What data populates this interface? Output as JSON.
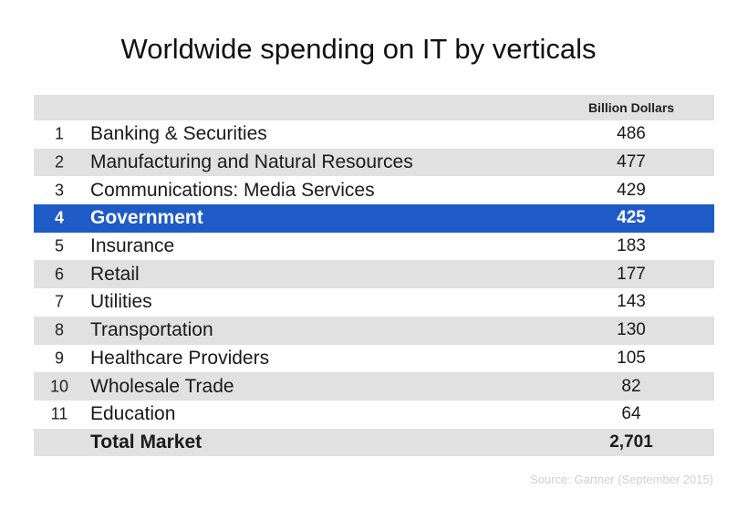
{
  "chart_data": {
    "type": "table",
    "title": "Worldwide spending on IT by verticals",
    "unit_header": "Billion Dollars",
    "highlight_rank": 4,
    "highlight_color": "#1e5bc6",
    "shade_color": "#e1e1e1",
    "rows": [
      {
        "rank": "1",
        "label": "Banking & Securities",
        "value": 486
      },
      {
        "rank": "2",
        "label": "Manufacturing and Natural Resources",
        "value": 477
      },
      {
        "rank": "3",
        "label": "Communications: Media Services",
        "value": 429
      },
      {
        "rank": "4",
        "label": "Government",
        "value": 425
      },
      {
        "rank": "5",
        "label": "Insurance",
        "value": 183
      },
      {
        "rank": "6",
        "label": "Retail",
        "value": 177
      },
      {
        "rank": "7",
        "label": "Utilities",
        "value": 143
      },
      {
        "rank": "8",
        "label": "Transportation",
        "value": 130
      },
      {
        "rank": "9",
        "label": "Healthcare Providers",
        "value": 105
      },
      {
        "rank": "10",
        "label": "Wholesale Trade",
        "value": 82
      },
      {
        "rank": "11",
        "label": "Education",
        "value": 64
      }
    ],
    "total": {
      "label": "Total Market",
      "value": "2,701"
    },
    "source": "Source: Gartner (September 2015)"
  }
}
